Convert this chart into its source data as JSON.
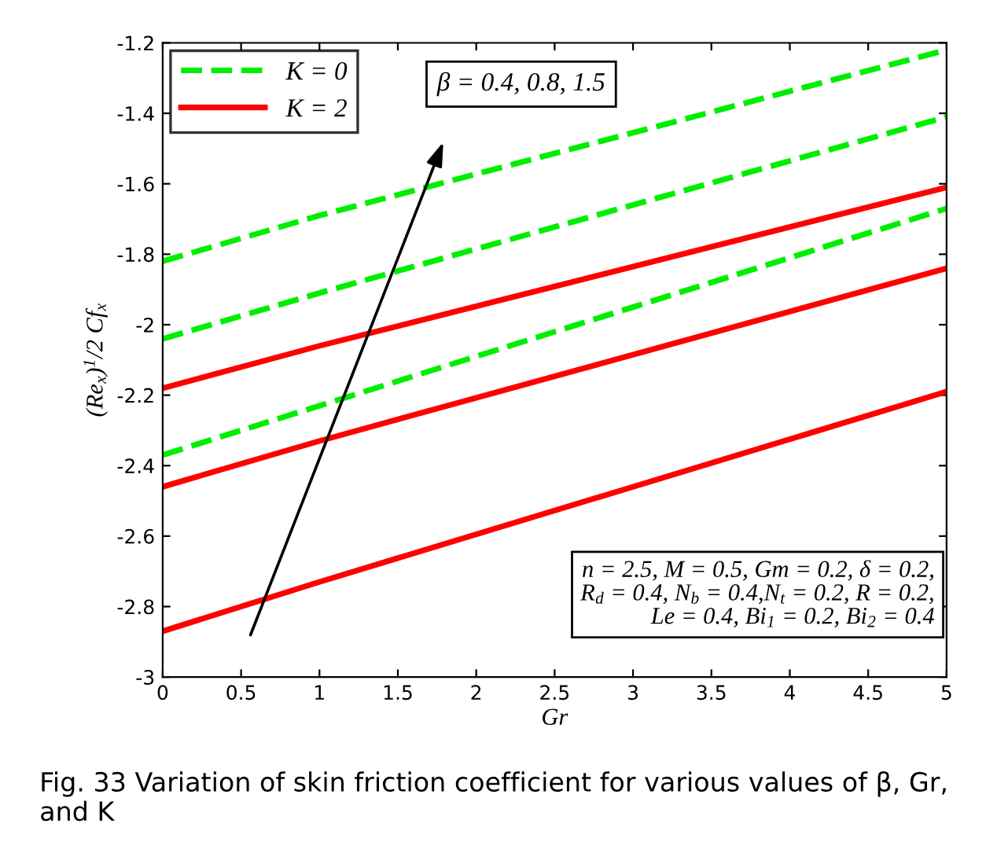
{
  "chart_data": {
    "type": "line",
    "xlabel": "Gr",
    "ylabel": "(Re$_{x}$)$^{1}$/2 Cf$_{x}$",
    "xlim": [
      0,
      5
    ],
    "ylim": [
      -3,
      -1.2
    ],
    "xticks": [
      0,
      0.5,
      1,
      1.5,
      2,
      2.5,
      3,
      3.5,
      4,
      4.5,
      5
    ],
    "yticks": [
      -3,
      -2.8,
      -2.6,
      -2.4,
      -2.2,
      -2,
      -1.8,
      -1.6,
      -1.4,
      -1.2
    ],
    "x": [
      0,
      1,
      5
    ],
    "series": [
      {
        "name": "K = 0",
        "color": "#00ee00",
        "line_style": "dashed",
        "values": [
          -1.82,
          -1.69,
          -1.22
        ]
      },
      {
        "color": "#00ee00",
        "line_style": "dashed",
        "values": [
          -2.04,
          -1.91,
          -1.41
        ]
      },
      {
        "color": "#00ee00",
        "line_style": "dashed",
        "values": [
          -2.37,
          -2.23,
          -1.67
        ]
      },
      {
        "name": "K = 2",
        "color": "#ff0000",
        "line_style": "solid",
        "values": [
          -2.18,
          -2.06,
          -1.61
        ]
      },
      {
        "color": "#ff0000",
        "line_style": "solid",
        "values": [
          -2.46,
          -2.33,
          -1.84
        ]
      },
      {
        "color": "#ff0000",
        "line_style": "solid",
        "values": [
          -2.87,
          -2.73,
          -2.19
        ]
      }
    ],
    "legend": "top left",
    "grid": false,
    "marker": "none",
    "annotations": [
      "β = 0.4, 0.8, 1.5",
      "n = 2.5, M = 0.5, Gm = 0.2, δ = 0.2,\nR$_{d}$ = 0.4, N$_{b}$ = 0.4,N$_{t}$ = 0.2, R = 0.2,\nLe = 0.4, Bi$_{1}$ = 0.2, Bi$_{2}$ = 0.4",
      "Fig. 33 Variation of skin friction coefficient for various values of β, Gr, and K"
    ]
  }
}
